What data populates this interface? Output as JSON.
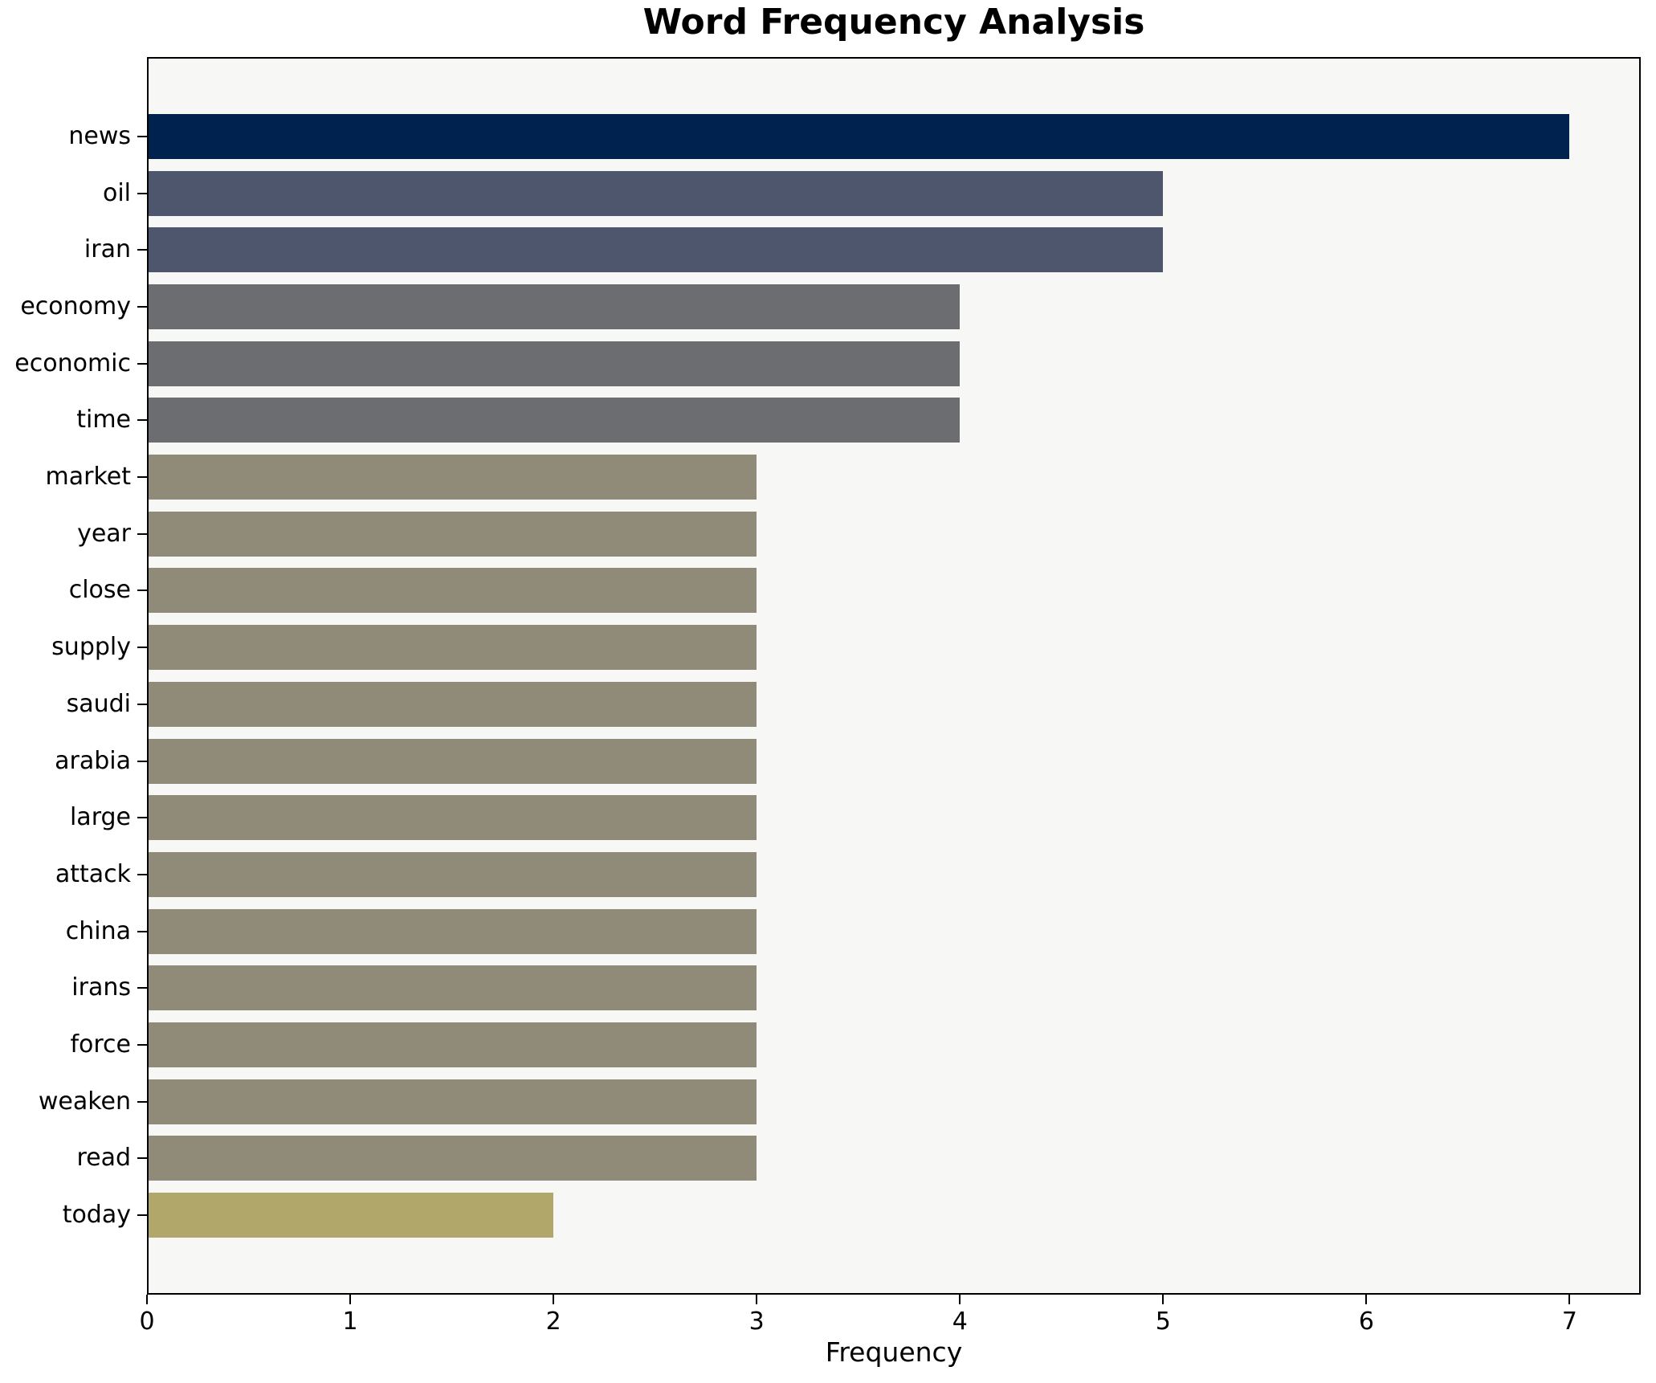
{
  "chart_data": {
    "type": "bar",
    "orientation": "horizontal",
    "title": "Word Frequency Analysis",
    "xlabel": "Frequency",
    "ylabel": "",
    "categories": [
      "news",
      "oil",
      "iran",
      "economy",
      "economic",
      "time",
      "market",
      "year",
      "close",
      "supply",
      "saudi",
      "arabia",
      "large",
      "attack",
      "china",
      "irans",
      "force",
      "weaken",
      "read",
      "today"
    ],
    "values": [
      7,
      5,
      5,
      4,
      4,
      4,
      3,
      3,
      3,
      3,
      3,
      3,
      3,
      3,
      3,
      3,
      3,
      3,
      3,
      2
    ],
    "bar_colors": [
      "#00224e",
      "#4d566d",
      "#4d566d",
      "#6c6d70",
      "#6c6d70",
      "#6c6d70",
      "#908a78",
      "#908a78",
      "#908a78",
      "#908a78",
      "#908a78",
      "#908a78",
      "#908a78",
      "#908a78",
      "#908a78",
      "#908a78",
      "#908a78",
      "#908a78",
      "#908a78",
      "#b2a76a"
    ],
    "xticks": [
      0,
      1,
      2,
      3,
      4,
      5,
      6,
      7
    ],
    "xlim": [
      0,
      7.35
    ],
    "grid": false,
    "legend": null,
    "plot_background": "#f7f7f5",
    "spine_color": "#000000",
    "text_color": "#000000"
  }
}
